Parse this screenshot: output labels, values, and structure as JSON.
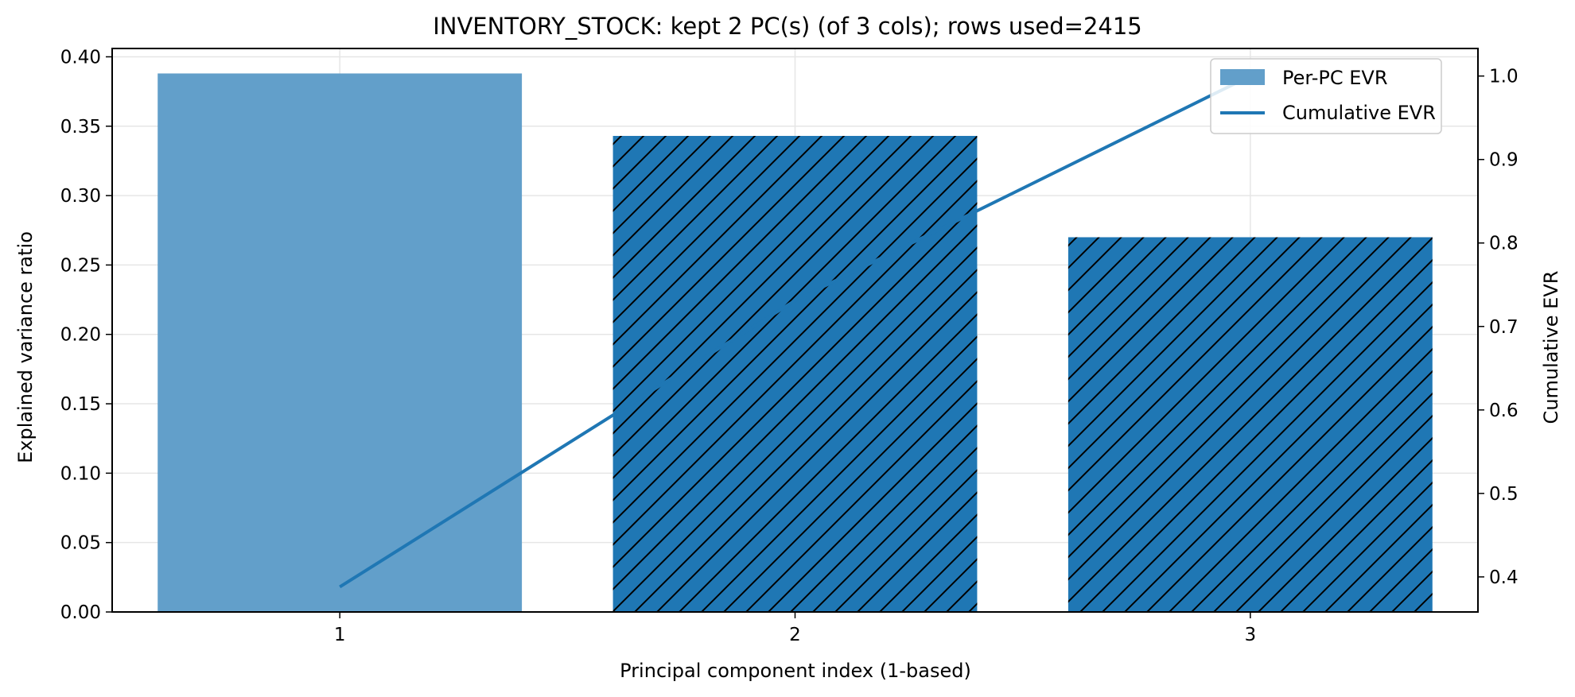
{
  "chart_data": {
    "type": "bar",
    "title": "INVENTORY_STOCK: kept 2 PC(s) (of 3 cols); rows used=2415",
    "xlabel": "Principal component index (1-based)",
    "ylabel": "Explained variance ratio",
    "y2label": "Cumulative EVR",
    "categories": [
      "1",
      "2",
      "3"
    ],
    "x": [
      1,
      2,
      3
    ],
    "series": [
      {
        "name": "Per-PC EVR",
        "kind": "bar",
        "values": [
          0.388,
          0.343,
          0.27
        ]
      },
      {
        "name": "Cumulative EVR",
        "kind": "line",
        "axis": "right",
        "values": [
          0.388,
          0.731,
          1.0
        ]
      }
    ],
    "hatched_bars": [
      "2",
      "3"
    ],
    "ylim": [
      0,
      0.406
    ],
    "y2lim": [
      0.358,
      1.033
    ],
    "yticks": [
      "0.00",
      "0.05",
      "0.10",
      "0.15",
      "0.20",
      "0.25",
      "0.30",
      "0.35",
      "0.40"
    ],
    "y2ticks": [
      "0.4",
      "0.5",
      "0.6",
      "0.7",
      "0.8",
      "0.9",
      "1.0"
    ],
    "grid": true,
    "legend": "top-right",
    "colors": {
      "bar_light": "#629fca",
      "bar_dark": "#1f77b4",
      "line": "#1f77b4",
      "hatch": "#000000",
      "grid": "#e6e6e6"
    }
  }
}
